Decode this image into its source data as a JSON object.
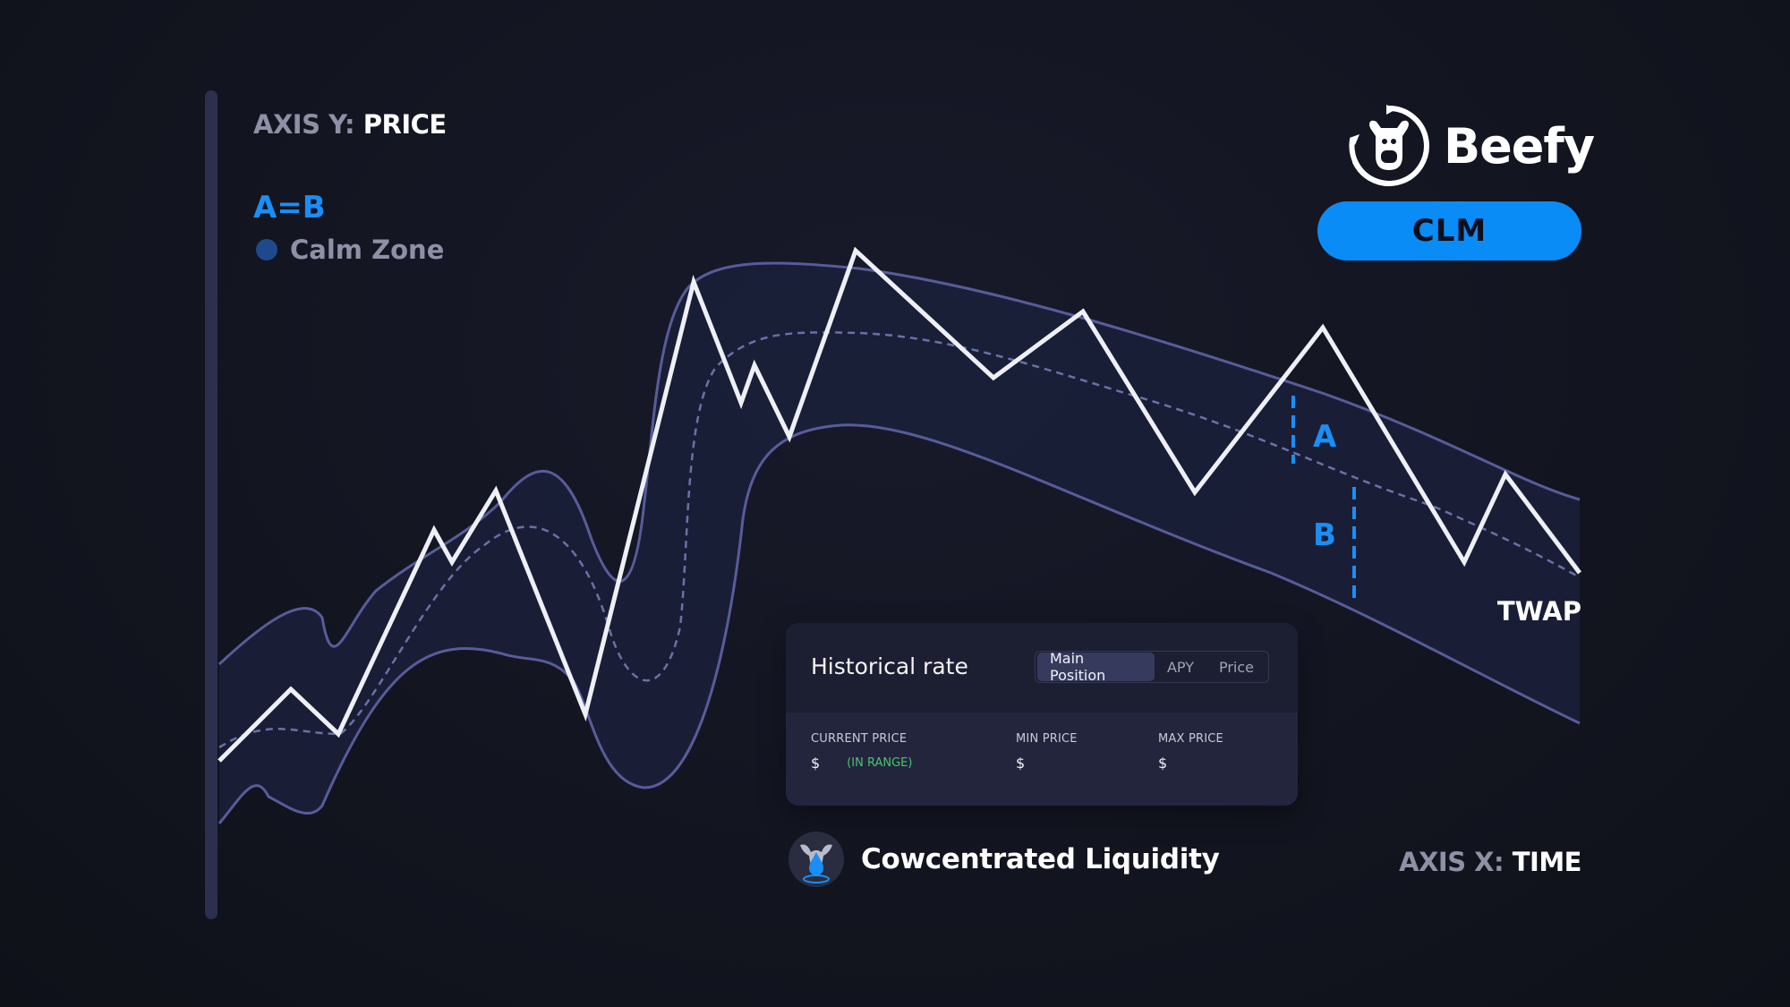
{
  "axes": {
    "y": {
      "prefix": "AXIS Y:",
      "name": "PRICE"
    },
    "x": {
      "prefix": "AXIS X:",
      "name": "TIME"
    }
  },
  "legend": {
    "equation": "A=B",
    "zone_label": "Calm Zone",
    "zone_color": "#1e4a8c"
  },
  "markers": {
    "a": "A",
    "b": "B",
    "twap": "TWAP"
  },
  "brand": {
    "name": "Beefy",
    "badge": "CLM",
    "badge_color": "#0a8cf7",
    "icon": "cow-logo-icon"
  },
  "card": {
    "title": "Historical rate",
    "tabs": [
      {
        "label": "Main Position",
        "active": true
      },
      {
        "label": "APY",
        "active": false
      },
      {
        "label": "Price",
        "active": false
      }
    ],
    "stats": {
      "current_price": {
        "label": "CURRENT PRICE",
        "value": "$",
        "status": "(IN RANGE)"
      },
      "min_price": {
        "label": "MIN PRICE",
        "value": "$"
      },
      "max_price": {
        "label": "MAX PRICE",
        "value": "$"
      }
    }
  },
  "product": {
    "name": "Cowcentrated Liquidity",
    "icon": "droplet-cow-icon"
  },
  "colors": {
    "accent": "#1b8ef5",
    "band": "#1a2038",
    "band_edge": "#585c9a",
    "price_line": "#eef0f6",
    "in_range": "#4bc46f"
  }
}
